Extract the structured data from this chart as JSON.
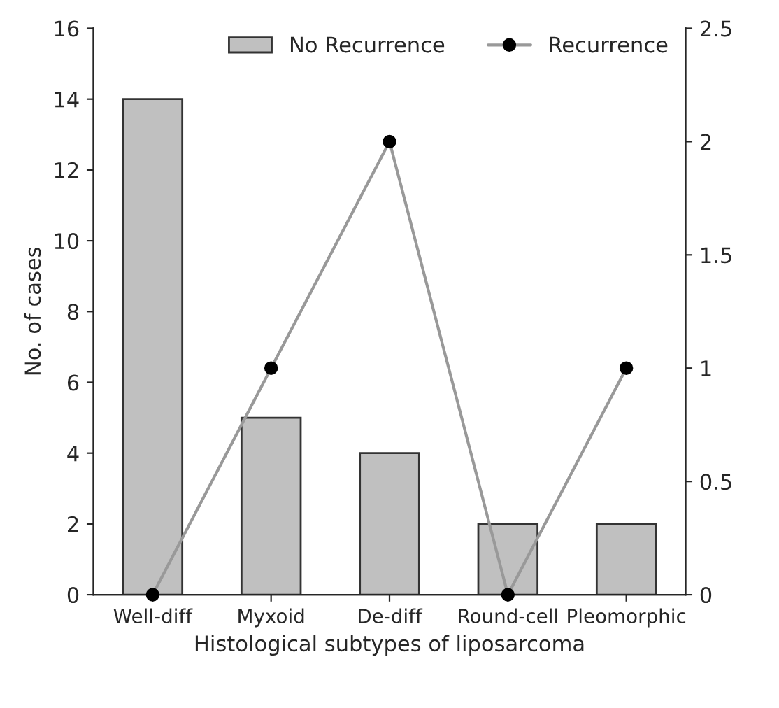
{
  "chart_data": {
    "type": "bar",
    "xlabel": "Histological subtypes of liposarcoma",
    "ylabel": "No. of cases",
    "categories": [
      "Well-diff",
      "Myxoid",
      "De-diff",
      "Round-cell",
      "Pleomorphic"
    ],
    "series": [
      {
        "name": "No Recurrence",
        "color": "#c0c0c0",
        "values": [
          14,
          5,
          4,
          2,
          2
        ]
      },
      {
        "name": "Recurrence",
        "type": "line",
        "axis": "y2",
        "color": "#999999",
        "marker": "circle",
        "values": [
          0,
          1,
          2,
          0,
          1
        ]
      }
    ],
    "ylim": [
      0,
      16
    ],
    "yticks": [
      0,
      2,
      4,
      6,
      8,
      10,
      12,
      14,
      16
    ],
    "y2lim": [
      0,
      2.5
    ],
    "y2ticks": [
      0,
      0.5,
      1,
      1.5,
      2,
      2.5
    ],
    "legend": "top",
    "grid": false
  }
}
